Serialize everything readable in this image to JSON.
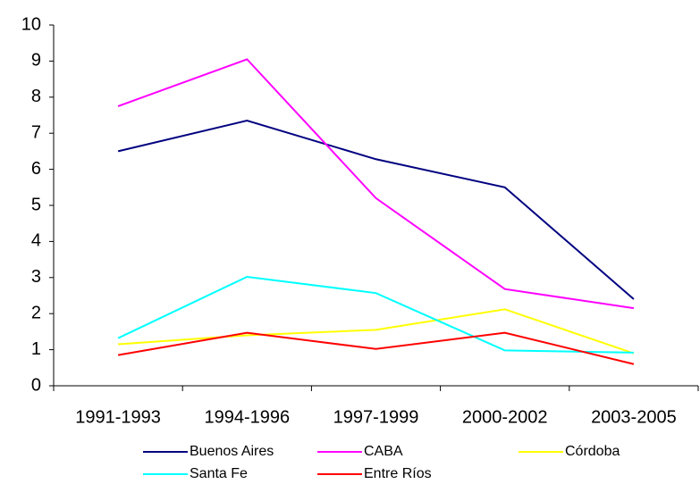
{
  "chart_data": {
    "type": "line",
    "categories": [
      "1991-1993",
      "1994-1996",
      "1997-1999",
      "2000-2002",
      "2003-2005"
    ],
    "series": [
      {
        "name": "Buenos Aires",
        "color": "#000080",
        "values": [
          6.5,
          7.35,
          6.28,
          5.5,
          2.4
        ]
      },
      {
        "name": "CABA",
        "color": "#ff00ff",
        "values": [
          7.75,
          9.05,
          5.2,
          2.68,
          2.15
        ]
      },
      {
        "name": "Córdoba",
        "color": "#ffff00",
        "values": [
          1.15,
          1.4,
          1.55,
          2.12,
          0.9
        ]
      },
      {
        "name": "Santa Fe",
        "color": "#00ffff",
        "values": [
          1.32,
          3.02,
          2.57,
          0.98,
          0.92
        ]
      },
      {
        "name": "Entre Ríos",
        "color": "#ff0000",
        "values": [
          0.85,
          1.47,
          1.02,
          1.47,
          0.6
        ]
      }
    ],
    "ylim": [
      0,
      10
    ],
    "yticks": [
      0,
      1,
      2,
      3,
      4,
      5,
      6,
      7,
      8,
      9,
      10
    ],
    "grid": false,
    "legend": "bottom"
  }
}
